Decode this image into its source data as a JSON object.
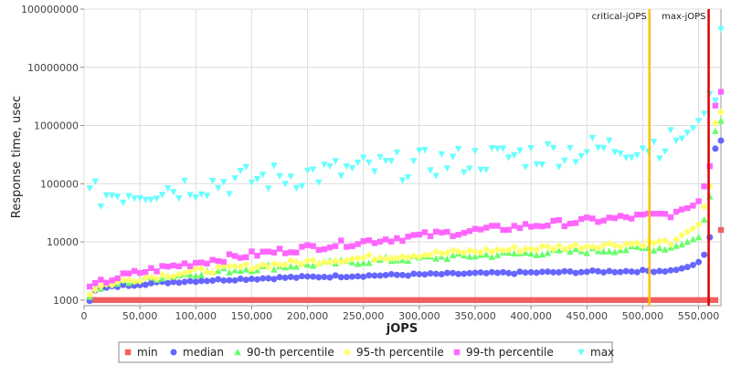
{
  "chart_data": {
    "type": "scatter",
    "title": "",
    "xlabel": "jOPS",
    "ylabel": "Response time, usec",
    "x_scale": "linear",
    "y_scale": "log",
    "xlim": [
      0,
      570000
    ],
    "ylim": [
      800,
      100000000
    ],
    "grid": true,
    "legend_position": "bottom",
    "x_ticks": [
      0,
      50000,
      100000,
      150000,
      200000,
      250000,
      300000,
      350000,
      400000,
      450000,
      500000,
      550000
    ],
    "x_tick_labels": [
      "0",
      "50,000",
      "100,000",
      "150,000",
      "200,000",
      "250,000",
      "300,000",
      "350,000",
      "400,000",
      "450,000",
      "500,000",
      "550,000"
    ],
    "y_ticks": [
      1000,
      10000,
      100000,
      1000000,
      10000000,
      100000000
    ],
    "y_tick_labels": [
      "1000",
      "10000",
      "100000",
      "1000000",
      "10000000",
      "100000000"
    ],
    "markers": [
      {
        "label": "critical-jOPS",
        "x": 506000,
        "color": "#ffc000"
      },
      {
        "label": "max-jOPS",
        "x": 559000,
        "color": "#e00000"
      }
    ],
    "series": [
      {
        "name": "min",
        "color": "#f06060",
        "shape": "square",
        "base": 1000,
        "end": 1000,
        "curve": 1,
        "noise": 0,
        "tail": [
          1000,
          1000,
          1000,
          1000,
          1000,
          1000,
          1000,
          1000,
          16000
        ]
      },
      {
        "name": "median",
        "color": "#6666ff",
        "shape": "circle",
        "base": 1000,
        "end": 3200,
        "curve": 0.25,
        "noise": 0.02,
        "tail": [
          3300,
          3500,
          3700,
          4000,
          4500,
          6000,
          12000,
          400000,
          550000
        ]
      },
      {
        "name": "90-th percentile",
        "color": "#66ff66",
        "shape": "triangle-up",
        "base": 1200,
        "end": 8000,
        "curve": 0.45,
        "noise": 0.05,
        "tail": [
          8500,
          9000,
          10000,
          11000,
          12000,
          24000,
          60000,
          800000,
          1200000
        ]
      },
      {
        "name": "95-th percentile",
        "color": "#ffff66",
        "shape": "diamond",
        "base": 1300,
        "end": 10000,
        "curve": 0.5,
        "noise": 0.05,
        "tail": [
          11000,
          13000,
          15000,
          17000,
          20000,
          40000,
          90000,
          1100000,
          1700000
        ]
      },
      {
        "name": "99-th percentile",
        "color": "#ff66ff",
        "shape": "square",
        "base": 1500,
        "end": 30000,
        "curve": 0.6,
        "noise": 0.06,
        "tail": [
          33000,
          36000,
          38000,
          42000,
          50000,
          90000,
          200000,
          2200000,
          3800000
        ]
      },
      {
        "name": "max",
        "color": "#66ffff",
        "shape": "triangle-down",
        "base": 60000,
        "end": 500000,
        "curve": 0.9,
        "noise": 0.25,
        "tail": [
          550000,
          600000,
          750000,
          900000,
          1200000,
          1600000,
          3500000,
          2700000,
          45000000
        ]
      }
    ],
    "x_start": 5000,
    "x_step": 5000,
    "n_points": 114
  }
}
